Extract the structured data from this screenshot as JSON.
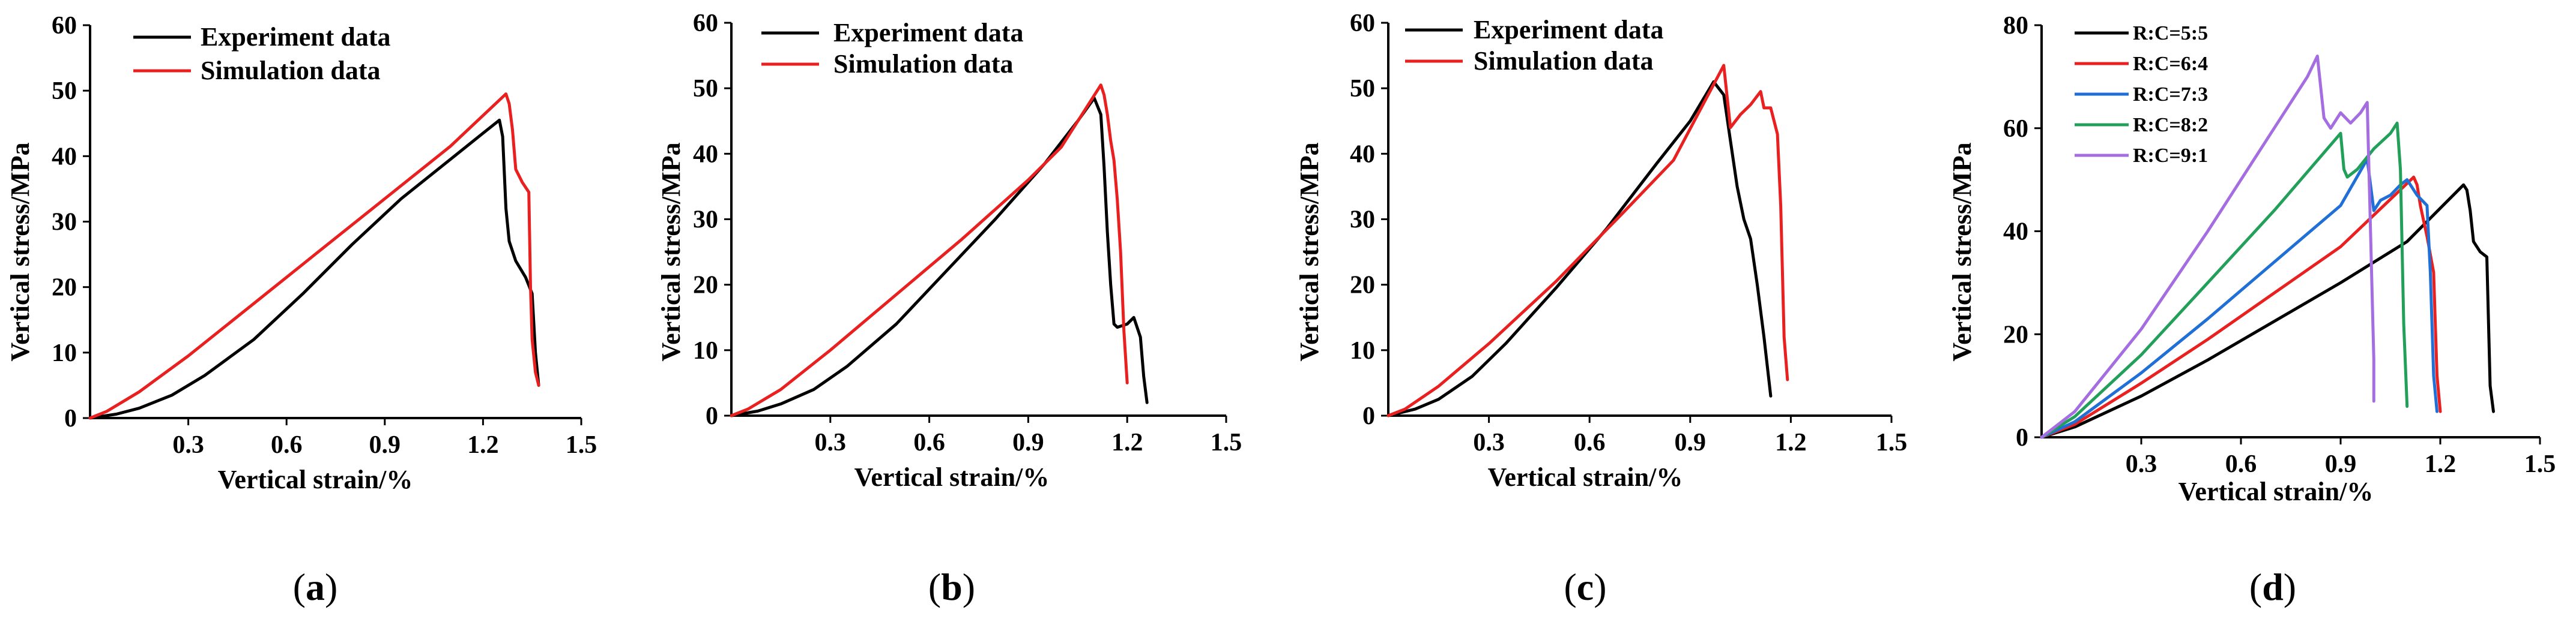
{
  "colors": {
    "experiment": "#000000",
    "simulation": "#e8201f",
    "rc55": "#000000",
    "rc64": "#e8201f",
    "rc73": "#1f6fd6",
    "rc82": "#22a05a",
    "rc91": "#a56ee0"
  },
  "chart_data": [
    {
      "id": "a",
      "panel_label": "a",
      "type": "line",
      "xlabel": "Vertical strain/%",
      "ylabel": "Vertical stress/MPa",
      "xlim": [
        0,
        1.5
      ],
      "ylim": [
        0,
        60
      ],
      "xticks": [
        0.3,
        0.6,
        0.9,
        1.2,
        1.5
      ],
      "yticks": [
        0,
        10,
        20,
        30,
        40,
        50,
        60
      ],
      "legend_position": "top-left",
      "series": [
        {
          "name": "Experiment data",
          "color_key": "experiment",
          "x": [
            0,
            0.08,
            0.15,
            0.25,
            0.35,
            0.5,
            0.65,
            0.8,
            0.95,
            1.1,
            1.2,
            1.25,
            1.26,
            1.27,
            1.28,
            1.3,
            1.33,
            1.35,
            1.36,
            1.37
          ],
          "y": [
            0,
            0.6,
            1.5,
            3.5,
            6.5,
            12,
            19,
            26.5,
            33.5,
            39.5,
            43.5,
            45.5,
            43,
            32,
            27,
            24,
            21.5,
            19,
            10,
            5
          ]
        },
        {
          "name": "Simulation data",
          "color_key": "simulation",
          "x": [
            0,
            0.05,
            0.15,
            0.3,
            0.5,
            0.7,
            0.9,
            1.1,
            1.27,
            1.28,
            1.29,
            1.3,
            1.32,
            1.34,
            1.345,
            1.35,
            1.36,
            1.37
          ],
          "y": [
            0,
            1,
            4,
            9.5,
            17.5,
            25.5,
            33.5,
            41.5,
            49.5,
            48,
            44,
            38,
            36,
            34.5,
            20,
            12,
            7,
            5
          ]
        }
      ]
    },
    {
      "id": "b",
      "panel_label": "b",
      "type": "line",
      "xlabel": "Vertical strain/%",
      "ylabel": "Vertical stress/MPa",
      "xlim": [
        0,
        1.5
      ],
      "ylim": [
        0,
        60
      ],
      "xticks": [
        0.3,
        0.6,
        0.9,
        1.2,
        1.5
      ],
      "yticks": [
        0,
        10,
        20,
        30,
        40,
        50,
        60
      ],
      "legend_position": "top-right",
      "series": [
        {
          "name": "Experiment data",
          "color_key": "experiment",
          "x": [
            0,
            0.08,
            0.15,
            0.25,
            0.35,
            0.5,
            0.65,
            0.8,
            0.95,
            1.05,
            1.1,
            1.12,
            1.13,
            1.14,
            1.15,
            1.16,
            1.17,
            1.2,
            1.22,
            1.24,
            1.25,
            1.26
          ],
          "y": [
            0,
            0.7,
            1.8,
            4,
            7.5,
            14,
            22,
            30,
            38.5,
            45,
            48.5,
            46,
            38,
            28,
            20,
            14,
            13.5,
            14,
            15,
            12,
            6,
            2
          ]
        },
        {
          "name": "Simulation data",
          "color_key": "simulation",
          "x": [
            0,
            0.05,
            0.15,
            0.3,
            0.5,
            0.7,
            0.9,
            1.0,
            1.12,
            1.13,
            1.14,
            1.15,
            1.16,
            1.17,
            1.18,
            1.19,
            1.2
          ],
          "y": [
            0,
            1,
            4,
            10,
            18.5,
            27,
            36,
            41,
            50.5,
            49,
            46,
            42,
            39,
            33,
            25,
            13,
            5
          ]
        }
      ]
    },
    {
      "id": "c",
      "panel_label": "c",
      "type": "line",
      "xlabel": "Vertical strain/%",
      "ylabel": "Vertical stress/MPa",
      "xlim": [
        0,
        1.5
      ],
      "ylim": [
        0,
        60
      ],
      "xticks": [
        0.3,
        0.6,
        0.9,
        1.2,
        1.5
      ],
      "yticks": [
        0,
        10,
        20,
        30,
        40,
        50,
        60
      ],
      "legend_position": "top-right",
      "series": [
        {
          "name": "Experiment data",
          "color_key": "experiment",
          "x": [
            0,
            0.08,
            0.15,
            0.25,
            0.35,
            0.5,
            0.65,
            0.8,
            0.9,
            0.97,
            1.0,
            1.02,
            1.04,
            1.06,
            1.08,
            1.1,
            1.12,
            1.14
          ],
          "y": [
            0,
            1,
            2.5,
            6,
            11,
            19.5,
            28.5,
            38.5,
            45,
            51,
            49,
            42,
            35,
            30,
            27,
            20,
            12,
            3
          ]
        },
        {
          "name": "Simulation data",
          "color_key": "simulation",
          "x": [
            0,
            0.05,
            0.15,
            0.3,
            0.5,
            0.7,
            0.85,
            1.0,
            1.02,
            1.05,
            1.08,
            1.11,
            1.12,
            1.14,
            1.15,
            1.16,
            1.17,
            1.18,
            1.19
          ],
          "y": [
            0,
            1,
            4.5,
            11,
            20.5,
            31,
            39,
            53.5,
            44,
            46,
            47.5,
            49.5,
            47,
            47,
            45,
            43,
            32,
            12,
            5.5
          ]
        }
      ]
    },
    {
      "id": "d",
      "panel_label": "d",
      "type": "line",
      "xlabel": "Vertical strain/%",
      "ylabel": "Vertical stress/MPa",
      "xlim": [
        0,
        1.5
      ],
      "ylim": [
        0,
        80
      ],
      "xticks": [
        0.3,
        0.6,
        0.9,
        1.2,
        1.5
      ],
      "yticks": [
        0,
        20,
        40,
        60,
        80
      ],
      "legend_position": "top-left",
      "series": [
        {
          "name": "R:C=5:5",
          "color_key": "rc55",
          "x": [
            0,
            0.1,
            0.3,
            0.5,
            0.7,
            0.9,
            1.1,
            1.27,
            1.28,
            1.29,
            1.3,
            1.32,
            1.34,
            1.35,
            1.36
          ],
          "y": [
            0,
            2,
            8,
            15,
            22.5,
            30,
            38,
            49,
            48,
            44,
            38,
            36,
            35,
            10,
            5
          ]
        },
        {
          "name": "R:C=6:4",
          "color_key": "rc64",
          "x": [
            0,
            0.1,
            0.3,
            0.5,
            0.7,
            0.9,
            1.12,
            1.13,
            1.14,
            1.15,
            1.16,
            1.18,
            1.19,
            1.2
          ],
          "y": [
            0,
            2.5,
            10.5,
            19,
            28,
            37,
            50.5,
            49,
            45,
            42,
            39,
            32,
            12,
            5
          ]
        },
        {
          "name": "R:C=7:3",
          "color_key": "rc73",
          "x": [
            0,
            0.1,
            0.3,
            0.5,
            0.7,
            0.9,
            0.98,
            1.0,
            1.02,
            1.05,
            1.08,
            1.1,
            1.13,
            1.16,
            1.17,
            1.18,
            1.19
          ],
          "y": [
            0,
            3,
            12.5,
            23,
            34,
            45,
            54,
            44,
            46,
            47,
            49,
            50,
            47,
            45,
            32,
            12,
            5
          ]
        },
        {
          "name": "R:C=8:2",
          "color_key": "rc82",
          "x": [
            0,
            0.1,
            0.3,
            0.5,
            0.7,
            0.9,
            0.91,
            0.92,
            0.95,
            1.0,
            1.05,
            1.07,
            1.08,
            1.09,
            1.1
          ],
          "y": [
            0,
            4,
            16,
            30,
            44,
            59,
            52,
            50.5,
            52,
            56,
            59,
            61,
            52,
            22,
            6
          ]
        },
        {
          "name": "R:C=9:1",
          "color_key": "rc91",
          "x": [
            0,
            0.1,
            0.3,
            0.5,
            0.7,
            0.8,
            0.83,
            0.84,
            0.85,
            0.87,
            0.9,
            0.93,
            0.96,
            0.98,
            0.99,
            1.0,
            1.0
          ],
          "y": [
            0,
            5,
            21,
            40,
            60,
            70,
            74,
            68,
            62,
            60,
            63,
            61,
            63,
            65,
            40,
            15,
            7
          ]
        }
      ]
    }
  ]
}
